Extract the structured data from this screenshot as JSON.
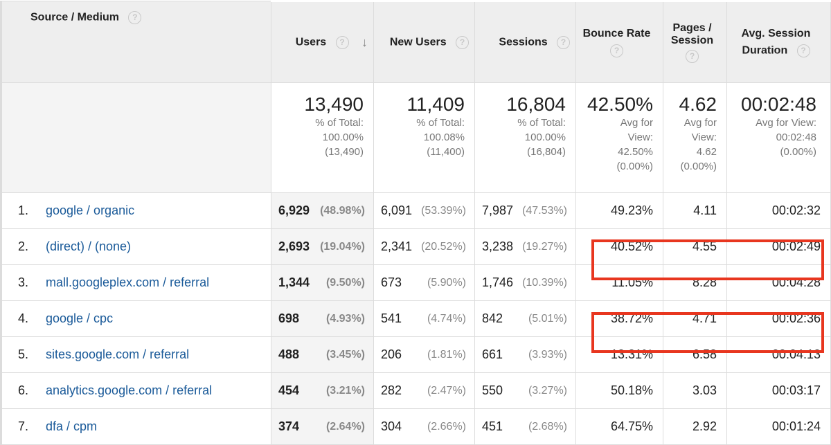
{
  "header": {
    "dimension": "Source / Medium",
    "users": "Users",
    "new_users": "New Users",
    "sessions": "Sessions",
    "bounce_rate": "Bounce Rate",
    "pages_session_1": "Pages /",
    "pages_session_2": "Session",
    "avg_duration_1": "Avg. Session",
    "avg_duration_2": "Duration",
    "help_glyph": "?",
    "sort_glyph": "↓"
  },
  "totals": {
    "users": {
      "value": "13,490",
      "l1": "% of Total:",
      "l2": "100.00%",
      "l3": "(13,490)"
    },
    "new_users": {
      "value": "11,409",
      "l1": "% of Total:",
      "l2": "100.08%",
      "l3": "(11,400)"
    },
    "sessions": {
      "value": "16,804",
      "l1": "% of Total:",
      "l2": "100.00%",
      "l3": "(16,804)"
    },
    "bounce_rate": {
      "value": "42.50%",
      "l1": "Avg for",
      "l2": "View:",
      "l3": "42.50%",
      "l4": "(0.00%)"
    },
    "pages_session": {
      "value": "4.62",
      "l1": "Avg for",
      "l2": "View:",
      "l3": "4.62",
      "l4": "(0.00%)"
    },
    "avg_duration": {
      "value": "00:02:48",
      "l1": "Avg for View:",
      "l2": "00:02:48",
      "l3": "(0.00%)"
    }
  },
  "rows": [
    {
      "idx": "1.",
      "source": "google / organic",
      "users": "6,929",
      "users_pct": "(48.98%)",
      "new_users": "6,091",
      "new_users_pct": "(53.39%)",
      "sessions": "7,987",
      "sessions_pct": "(47.53%)",
      "bounce": "49.23%",
      "pages": "4.11",
      "duration": "00:02:32"
    },
    {
      "idx": "2.",
      "source": "(direct) / (none)",
      "users": "2,693",
      "users_pct": "(19.04%)",
      "new_users": "2,341",
      "new_users_pct": "(20.52%)",
      "sessions": "3,238",
      "sessions_pct": "(19.27%)",
      "bounce": "40.52%",
      "pages": "4.55",
      "duration": "00:02:49"
    },
    {
      "idx": "3.",
      "source": "mall.googleplex.com / referral",
      "users": "1,344",
      "users_pct": "(9.50%)",
      "new_users": "673",
      "new_users_pct": "(5.90%)",
      "sessions": "1,746",
      "sessions_pct": "(10.39%)",
      "bounce": "11.05%",
      "pages": "8.28",
      "duration": "00:04:28"
    },
    {
      "idx": "4.",
      "source": "google / cpc",
      "users": "698",
      "users_pct": "(4.93%)",
      "new_users": "541",
      "new_users_pct": "(4.74%)",
      "sessions": "842",
      "sessions_pct": "(5.01%)",
      "bounce": "38.72%",
      "pages": "4.71",
      "duration": "00:02:36"
    },
    {
      "idx": "5.",
      "source": "sites.google.com / referral",
      "users": "488",
      "users_pct": "(3.45%)",
      "new_users": "206",
      "new_users_pct": "(1.81%)",
      "sessions": "661",
      "sessions_pct": "(3.93%)",
      "bounce": "13.31%",
      "pages": "6.58",
      "duration": "00:04:13"
    },
    {
      "idx": "6.",
      "source": "analytics.google.com / referral",
      "users": "454",
      "users_pct": "(3.21%)",
      "new_users": "282",
      "new_users_pct": "(2.47%)",
      "sessions": "550",
      "sessions_pct": "(3.27%)",
      "bounce": "50.18%",
      "pages": "3.03",
      "duration": "00:03:17"
    },
    {
      "idx": "7.",
      "source": "dfa / cpm",
      "users": "374",
      "users_pct": "(2.64%)",
      "new_users": "304",
      "new_users_pct": "(2.66%)",
      "sessions": "451",
      "sessions_pct": "(2.68%)",
      "bounce": "64.75%",
      "pages": "2.92",
      "duration": "00:01:24"
    }
  ],
  "highlight_color": "#e8361f",
  "link_color": "#1a5a99"
}
